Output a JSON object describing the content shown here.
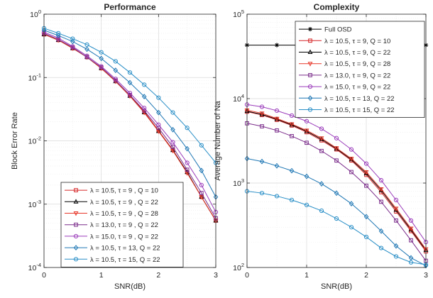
{
  "chart_data": [
    {
      "type": "line",
      "title": "Performance",
      "xlabel": "SNR(dB)",
      "ylabel": "Block Error Rate",
      "xscale": "linear",
      "yscale": "log",
      "xlim": [
        0,
        3
      ],
      "ylim": [
        0.0001,
        1
      ],
      "grid": true,
      "legend_position": "bottom-right",
      "x_ticks": [
        "0",
        "1",
        "2",
        "3"
      ],
      "y_ticks": [
        "10^{-4}",
        "10^{-3}",
        "10^{-2}",
        "10^{-1}",
        "10^{0}"
      ],
      "x": [
        0,
        0.25,
        0.5,
        0.75,
        1,
        1.25,
        1.5,
        1.75,
        2,
        2.25,
        2.5,
        2.75,
        3
      ],
      "series": [
        {
          "name": "λ = 10.5, τ = 9  , Q = 10",
          "color": "#d62728",
          "marker": "square",
          "values": [
            0.48,
            0.39,
            0.29,
            0.21,
            0.14,
            0.088,
            0.052,
            0.029,
            0.0145,
            0.0072,
            0.0032,
            0.0013,
            0.00055
          ]
        },
        {
          "name": "λ = 10.5, τ = 9  , Q = 22",
          "color": "#000000",
          "marker": "triangle-up",
          "values": [
            0.48,
            0.39,
            0.29,
            0.21,
            0.14,
            0.087,
            0.051,
            0.028,
            0.0142,
            0.0071,
            0.0032,
            0.0013,
            0.00055
          ]
        },
        {
          "name": "λ = 10.5, τ = 9  , Q = 28",
          "color": "#e8382a",
          "marker": "triangle-down",
          "values": [
            0.48,
            0.39,
            0.29,
            0.21,
            0.14,
            0.087,
            0.051,
            0.028,
            0.0142,
            0.007,
            0.0031,
            0.0013,
            0.00055
          ]
        },
        {
          "name": "λ = 13.0, τ = 9  , Q = 22",
          "color": "#7b2d8b",
          "marker": "square",
          "values": [
            0.5,
            0.4,
            0.3,
            0.21,
            0.145,
            0.09,
            0.053,
            0.03,
            0.016,
            0.008,
            0.0035,
            0.0015,
            0.0006
          ]
        },
        {
          "name": "λ = 15.0, τ = 9  , Q = 22",
          "color": "#9b3dbb",
          "marker": "circle",
          "values": [
            0.52,
            0.42,
            0.31,
            0.22,
            0.15,
            0.095,
            0.057,
            0.033,
            0.018,
            0.0095,
            0.0045,
            0.002,
            0.00075
          ]
        },
        {
          "name": "λ = 10.5, τ = 13, Q = 22",
          "color": "#1f77b4",
          "marker": "diamond",
          "values": [
            0.56,
            0.46,
            0.37,
            0.28,
            0.2,
            0.13,
            0.083,
            0.05,
            0.028,
            0.015,
            0.0075,
            0.0034,
            0.0013
          ]
        },
        {
          "name": "λ = 10.5, τ = 15, Q = 22",
          "color": "#2a8fc7",
          "marker": "circle",
          "values": [
            0.6,
            0.5,
            0.41,
            0.33,
            0.25,
            0.18,
            0.12,
            0.077,
            0.048,
            0.028,
            0.016,
            0.0085,
            0.0045
          ]
        }
      ]
    },
    {
      "type": "line",
      "title": "Complexity",
      "xlabel": "SNR(dB)",
      "ylabel": "Average Number of Na",
      "xscale": "linear",
      "yscale": "log",
      "xlim": [
        0,
        3
      ],
      "ylim": [
        100,
        100000
      ],
      "grid": true,
      "legend_position": "top-right",
      "x_ticks": [
        "0",
        "1",
        "2",
        "3"
      ],
      "y_ticks": [
        "10^{2}",
        "10^{3}",
        "10^{4}",
        "10^{5}"
      ],
      "x": [
        0,
        0.25,
        0.5,
        0.75,
        1,
        1.25,
        1.5,
        1.75,
        2,
        2.25,
        2.5,
        2.75,
        3
      ],
      "series": [
        {
          "name": "Full OSD",
          "color": "#000000",
          "marker": "star",
          "x": [
            0,
            0.5,
            3
          ],
          "values": [
            43000,
            43000,
            43000
          ]
        },
        {
          "name": "λ = 10.5, τ =   9, Q = 10",
          "color": "#d62728",
          "marker": "square",
          "values": [
            7000,
            6400,
            5600,
            4800,
            4000,
            3200,
            2500,
            1850,
            1250,
            780,
            460,
            270,
            155
          ]
        },
        {
          "name": "λ = 10.5, τ =   9, Q = 22",
          "color": "#000000",
          "marker": "triangle-up",
          "values": [
            7100,
            6500,
            5700,
            4900,
            4100,
            3300,
            2550,
            1900,
            1300,
            820,
            480,
            280,
            160
          ]
        },
        {
          "name": "λ = 10.5, τ =   9, Q = 28",
          "color": "#e8382a",
          "marker": "triangle-down",
          "values": [
            7300,
            6700,
            5800,
            5000,
            4200,
            3400,
            2600,
            1950,
            1350,
            850,
            500,
            290,
            165
          ]
        },
        {
          "name": "λ = 13.0, τ =   9, Q = 22",
          "color": "#7b2d8b",
          "marker": "square",
          "values": [
            5100,
            4700,
            4200,
            3600,
            3000,
            2400,
            1850,
            1350,
            930,
            600,
            360,
            210,
            120
          ]
        },
        {
          "name": "λ = 15.0, τ =   9, Q = 22",
          "color": "#9b3dbb",
          "marker": "circle",
          "values": [
            8500,
            8000,
            7200,
            6300,
            5400,
            4400,
            3400,
            2500,
            1700,
            1080,
            630,
            360,
            200
          ]
        },
        {
          "name": "λ = 10.5, τ = 13, Q = 22",
          "color": "#1f77b4",
          "marker": "diamond",
          "values": [
            1950,
            1800,
            1600,
            1400,
            1200,
            980,
            760,
            570,
            400,
            270,
            180,
            130,
            105
          ]
        },
        {
          "name": "λ = 10.5, τ = 15, Q = 22",
          "color": "#2a8fc7",
          "marker": "circle",
          "values": [
            800,
            760,
            700,
            630,
            550,
            470,
            380,
            300,
            230,
            170,
            135,
            115,
            108
          ]
        }
      ]
    }
  ]
}
